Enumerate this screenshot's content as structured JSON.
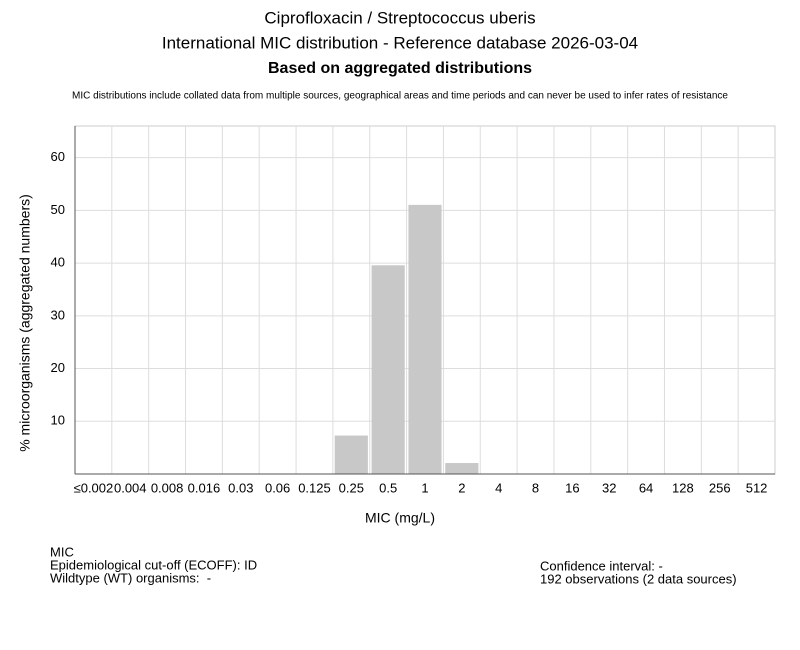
{
  "chart_data": {
    "type": "bar",
    "title": "Ciprofloxacin / Streptococcus uberis",
    "subtitle": "International MIC distribution - Reference database 2026-03-04",
    "heading": "Based on aggregated distributions",
    "note": "MIC distributions include collated data from multiple sources, geographical areas and time periods and can never be used to infer rates of resistance",
    "x_label": "MIC (mg/L)",
    "y_label": "% microorganisms (aggregated numbers)",
    "categories": [
      "≤0.002",
      "0.004",
      "0.008",
      "0.016",
      "0.03",
      "0.06",
      "0.125",
      "0.25",
      "0.5",
      "1",
      "2",
      "4",
      "8",
      "16",
      "32",
      "64",
      "128",
      "256",
      "512"
    ],
    "values": [
      0,
      0,
      0,
      0,
      0,
      0,
      0,
      7.29,
      39.58,
      51.04,
      2.08,
      0,
      0,
      0,
      0,
      0,
      0,
      0,
      0
    ],
    "color": "#c8c8c8",
    "ylim": [
      0,
      66
    ],
    "yticks": [
      10,
      20,
      30,
      40,
      50,
      60
    ],
    "grid": true,
    "footer_left": [
      "MIC",
      "Epidemiological cut-off (ECOFF): ID",
      "Wildtype (WT) organisms:  -"
    ],
    "footer_right": [
      "Confidence interval: -",
      "192 observations (2 data sources)"
    ]
  }
}
